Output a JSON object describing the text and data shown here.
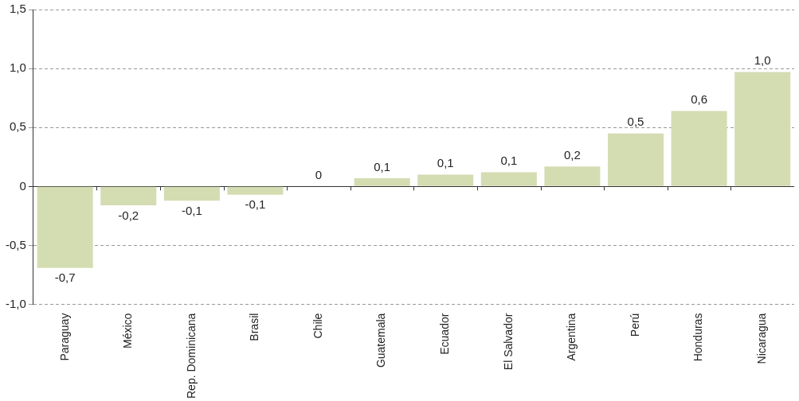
{
  "chart_data": {
    "type": "bar",
    "categories": [
      "Paraguay",
      "México",
      "Rep. Dominicana",
      "Brasil",
      "Chile",
      "Guatemala",
      "Ecuador",
      "El Salvador",
      "Argentina",
      "Perú",
      "Honduras",
      "Nicaragua"
    ],
    "values": [
      -0.69,
      -0.16,
      -0.12,
      -0.07,
      0,
      0.07,
      0.1,
      0.12,
      0.17,
      0.45,
      0.64,
      0.97
    ],
    "value_labels": [
      "-0,7",
      "-0,2",
      "-0,1",
      "-0,1",
      "0",
      "0,1",
      "0,1",
      "0,1",
      "0,2",
      "0,5",
      "0,6",
      "1,0"
    ],
    "color": "#d4dcb2",
    "ylim": [
      -1,
      1.5
    ],
    "yticks": [
      {
        "value": -1,
        "label": "-1,0"
      },
      {
        "value": -0.5,
        "label": "-0,5"
      },
      0,
      {
        "value": 0.5,
        "label": "0,5"
      },
      {
        "value": 1,
        "label": "1,0"
      },
      {
        "value": 1.5,
        "label": "1,5"
      }
    ],
    "grid": "y",
    "legend": false
  }
}
